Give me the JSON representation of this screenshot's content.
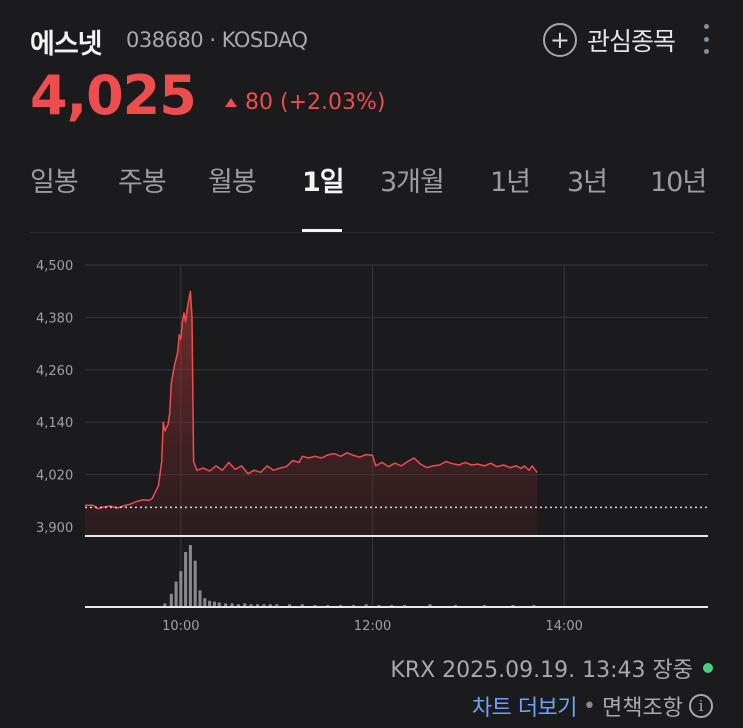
{
  "stock": {
    "name": "에스넷",
    "code_market": "038680 · KOSDAQ",
    "price": "4,025",
    "change": "80 (+2.03%)",
    "watch_label": "관심종목"
  },
  "tabs": [
    "일봉",
    "주봉",
    "월봉",
    "1일",
    "3개월",
    "1년",
    "3년",
    "10년"
  ],
  "active_tab": "1일",
  "chart_data": {
    "type": "area",
    "y_tick_labels": [
      "4,500",
      "4,380",
      "4,260",
      "4,140",
      "4,020",
      "3,900"
    ],
    "y_ticks": [
      4500,
      4380,
      4260,
      4140,
      4020,
      3900
    ],
    "ylim": [
      3900,
      4500
    ],
    "x_tick_labels": [
      "10:00",
      "12:00",
      "14:00"
    ],
    "x_range_minutes": [
      540,
      930
    ],
    "reference_line": 3945,
    "price_series": [
      [
        540,
        3950
      ],
      [
        545,
        3950
      ],
      [
        548,
        3942
      ],
      [
        552,
        3946
      ],
      [
        556,
        3948
      ],
      [
        560,
        3943
      ],
      [
        564,
        3948
      ],
      [
        568,
        3952
      ],
      [
        572,
        3958
      ],
      [
        576,
        3962
      ],
      [
        580,
        3961
      ],
      [
        582,
        3965
      ],
      [
        584,
        3980
      ],
      [
        586,
        3995
      ],
      [
        588,
        4050
      ],
      [
        589,
        4140
      ],
      [
        590,
        4120
      ],
      [
        592,
        4135
      ],
      [
        593,
        4160
      ],
      [
        594,
        4230
      ],
      [
        596,
        4270
      ],
      [
        598,
        4300
      ],
      [
        599,
        4340
      ],
      [
        600,
        4330
      ],
      [
        601,
        4370
      ],
      [
        602,
        4390
      ],
      [
        603,
        4370
      ],
      [
        604,
        4400
      ],
      [
        606,
        4440
      ],
      [
        607,
        4380
      ],
      [
        608,
        4050
      ],
      [
        610,
        4030
      ],
      [
        614,
        4035
      ],
      [
        618,
        4028
      ],
      [
        622,
        4040
      ],
      [
        626,
        4030
      ],
      [
        630,
        4048
      ],
      [
        634,
        4032
      ],
      [
        638,
        4040
      ],
      [
        642,
        4022
      ],
      [
        646,
        4030
      ],
      [
        650,
        4025
      ],
      [
        654,
        4040
      ],
      [
        658,
        4030
      ],
      [
        662,
        4035
      ],
      [
        666,
        4038
      ],
      [
        668,
        4045
      ],
      [
        670,
        4052
      ],
      [
        674,
        4048
      ],
      [
        676,
        4062
      ],
      [
        680,
        4058
      ],
      [
        684,
        4062
      ],
      [
        688,
        4058
      ],
      [
        692,
        4065
      ],
      [
        696,
        4068
      ],
      [
        700,
        4062
      ],
      [
        704,
        4070
      ],
      [
        708,
        4064
      ],
      [
        712,
        4060
      ],
      [
        716,
        4066
      ],
      [
        720,
        4064
      ],
      [
        722,
        4040
      ],
      [
        726,
        4048
      ],
      [
        730,
        4038
      ],
      [
        734,
        4046
      ],
      [
        738,
        4040
      ],
      [
        742,
        4050
      ],
      [
        746,
        4058
      ],
      [
        750,
        4044
      ],
      [
        754,
        4036
      ],
      [
        758,
        4040
      ],
      [
        762,
        4042
      ],
      [
        766,
        4050
      ],
      [
        770,
        4045
      ],
      [
        774,
        4042
      ],
      [
        778,
        4048
      ],
      [
        782,
        4042
      ],
      [
        786,
        4044
      ],
      [
        790,
        4040
      ],
      [
        794,
        4046
      ],
      [
        798,
        4038
      ],
      [
        802,
        4042
      ],
      [
        806,
        4036
      ],
      [
        810,
        4040
      ],
      [
        813,
        4034
      ],
      [
        815,
        4040
      ],
      [
        818,
        4030
      ],
      [
        820,
        4040
      ],
      [
        823,
        4025
      ]
    ],
    "volume_max": 70,
    "volume_series": [
      [
        590,
        3
      ],
      [
        594,
        14
      ],
      [
        597,
        28
      ],
      [
        600,
        40
      ],
      [
        603,
        62
      ],
      [
        606,
        70
      ],
      [
        609,
        52
      ],
      [
        612,
        18
      ],
      [
        615,
        9
      ],
      [
        618,
        6
      ],
      [
        621,
        5
      ],
      [
        624,
        4
      ],
      [
        628,
        3
      ],
      [
        632,
        3
      ],
      [
        636,
        2
      ],
      [
        640,
        3
      ],
      [
        644,
        2
      ],
      [
        648,
        2
      ],
      [
        652,
        2
      ],
      [
        656,
        2
      ],
      [
        660,
        2
      ],
      [
        668,
        2
      ],
      [
        676,
        2
      ],
      [
        684,
        1
      ],
      [
        692,
        1
      ],
      [
        700,
        1
      ],
      [
        708,
        1
      ],
      [
        716,
        2
      ],
      [
        724,
        1
      ],
      [
        732,
        1
      ],
      [
        740,
        1
      ],
      [
        756,
        2
      ],
      [
        772,
        1
      ],
      [
        790,
        1
      ],
      [
        808,
        1
      ],
      [
        821,
        1
      ]
    ]
  },
  "footer": {
    "timestamp": "KRX 2025.09.19. 13:43 장중",
    "more_chart": "차트 더보기",
    "separator": "•",
    "disclaimer": "면책조항",
    "info_glyph": "i"
  }
}
